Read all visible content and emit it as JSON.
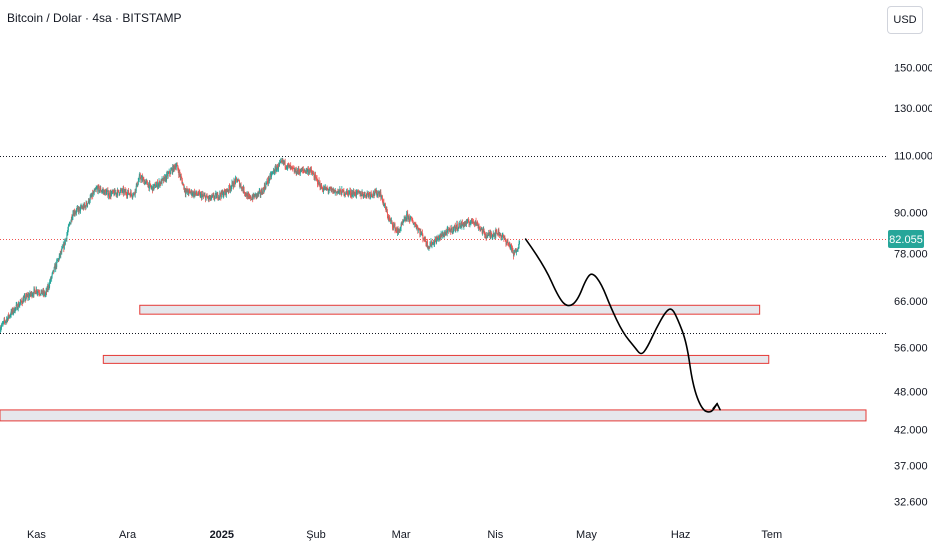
{
  "header": {
    "symbol_title": "Bitcoin / Dolar · 4sa · BITSTAMP",
    "currency_button": "USD"
  },
  "colors": {
    "up_candle": "#26a69a",
    "down_candle": "#ef5350",
    "zone_border": "#e53935",
    "zone_fill": "#dedfe6",
    "last_price_badge": "#26a69a",
    "projection_line": "#000000",
    "axis_text": "#131722"
  },
  "chart_data": {
    "type": "candlestick",
    "scale": "log",
    "ylim": [
      31000,
      190000
    ],
    "x_range": [
      "2024-10-20",
      "2025-08-01"
    ],
    "y_ticks": [
      {
        "value": 150000,
        "label": "150.000"
      },
      {
        "value": 130000,
        "label": "130.000"
      },
      {
        "value": 110000,
        "label": "110.000"
      },
      {
        "value": 90000,
        "label": "90.000"
      },
      {
        "value": 78000,
        "label": "78.000"
      },
      {
        "value": 66000,
        "label": "66.000"
      },
      {
        "value": 56000,
        "label": "56.000"
      },
      {
        "value": 48000,
        "label": "48.000"
      },
      {
        "value": 42000,
        "label": "42.000"
      },
      {
        "value": 37000,
        "label": "37.000"
      },
      {
        "value": 32600,
        "label": "32.600"
      }
    ],
    "x_ticks": [
      {
        "date": "2024-11-01",
        "label": "Kas",
        "bold": false
      },
      {
        "date": "2024-12-01",
        "label": "Ara",
        "bold": false
      },
      {
        "date": "2025-01-01",
        "label": "2025",
        "bold": true
      },
      {
        "date": "2025-02-01",
        "label": "Şub",
        "bold": false
      },
      {
        "date": "2025-03-01",
        "label": "Mar",
        "bold": false
      },
      {
        "date": "2025-04-01",
        "label": "Nis",
        "bold": false
      },
      {
        "date": "2025-05-01",
        "label": "May",
        "bold": false
      },
      {
        "date": "2025-06-01",
        "label": "Haz",
        "bold": false
      },
      {
        "date": "2025-07-01",
        "label": "Tem",
        "bold": false
      }
    ],
    "last_price": {
      "value": 82055,
      "label": "82.055"
    },
    "horizontal_lines": [
      {
        "value": 109800,
        "style": "dotted"
      },
      {
        "value": 59000,
        "style": "dotted"
      }
    ],
    "price_path": [
      [
        "2024-10-20",
        60000
      ],
      [
        "2024-10-24",
        63500
      ],
      [
        "2024-10-28",
        66500
      ],
      [
        "2024-11-01",
        68500
      ],
      [
        "2024-11-04",
        67500
      ],
      [
        "2024-11-07",
        74000
      ],
      [
        "2024-11-10",
        80000
      ],
      [
        "2024-11-13",
        90000
      ],
      [
        "2024-11-17",
        92000
      ],
      [
        "2024-11-21",
        98000
      ],
      [
        "2024-11-25",
        96000
      ],
      [
        "2024-11-29",
        97000
      ],
      [
        "2024-12-03",
        96000
      ],
      [
        "2024-12-05",
        102000
      ],
      [
        "2024-12-09",
        98000
      ],
      [
        "2024-12-13",
        101000
      ],
      [
        "2024-12-17",
        106500
      ],
      [
        "2024-12-20",
        97000
      ],
      [
        "2024-12-24",
        96000
      ],
      [
        "2024-12-28",
        94500
      ],
      [
        "2025-01-02",
        96500
      ],
      [
        "2025-01-06",
        101000
      ],
      [
        "2025-01-10",
        94500
      ],
      [
        "2025-01-14",
        96500
      ],
      [
        "2025-01-18",
        104000
      ],
      [
        "2025-01-21",
        107500
      ],
      [
        "2025-01-25",
        104000
      ],
      [
        "2025-01-30",
        104500
      ],
      [
        "2025-02-03",
        98000
      ],
      [
        "2025-02-07",
        97000
      ],
      [
        "2025-02-12",
        96500
      ],
      [
        "2025-02-17",
        96000
      ],
      [
        "2025-02-22",
        96500
      ],
      [
        "2025-02-25",
        88000
      ],
      [
        "2025-02-28",
        84000
      ],
      [
        "2025-03-03",
        89000
      ],
      [
        "2025-03-06",
        86000
      ],
      [
        "2025-03-10",
        80000
      ],
      [
        "2025-03-15",
        83500
      ],
      [
        "2025-03-20",
        86000
      ],
      [
        "2025-03-25",
        87500
      ],
      [
        "2025-03-29",
        83000
      ],
      [
        "2025-04-02",
        84000
      ],
      [
        "2025-04-06",
        80000
      ],
      [
        "2025-04-07",
        77500
      ],
      [
        "2025-04-09",
        81000
      ]
    ],
    "zones": [
      {
        "low": 63000,
        "high": 65000,
        "start": "2024-12-05",
        "end": "2025-06-27"
      },
      {
        "low": 53000,
        "high": 54500,
        "start": "2024-11-23",
        "end": "2025-06-30"
      },
      {
        "low": 43300,
        "high": 45000,
        "start": "2024-10-20",
        "end": "2025-08-01"
      }
    ],
    "projection_path": [
      [
        "2025-04-11",
        82000
      ],
      [
        "2025-04-17",
        75000
      ],
      [
        "2025-04-22",
        66500
      ],
      [
        "2025-04-25",
        64500
      ],
      [
        "2025-04-28",
        66000
      ],
      [
        "2025-05-01",
        71500
      ],
      [
        "2025-05-03",
        73000
      ],
      [
        "2025-05-06",
        70000
      ],
      [
        "2025-05-09",
        64500
      ],
      [
        "2025-05-13",
        59000
      ],
      [
        "2025-05-17",
        56000
      ],
      [
        "2025-05-19",
        54500
      ],
      [
        "2025-05-21",
        56000
      ],
      [
        "2025-05-24",
        60000
      ],
      [
        "2025-05-27",
        63500
      ],
      [
        "2025-05-29",
        64500
      ],
      [
        "2025-05-31",
        62000
      ],
      [
        "2025-06-03",
        57000
      ],
      [
        "2025-06-05",
        49000
      ],
      [
        "2025-06-08",
        45000
      ],
      [
        "2025-06-11",
        44500
      ],
      [
        "2025-06-13",
        46000
      ]
    ]
  }
}
